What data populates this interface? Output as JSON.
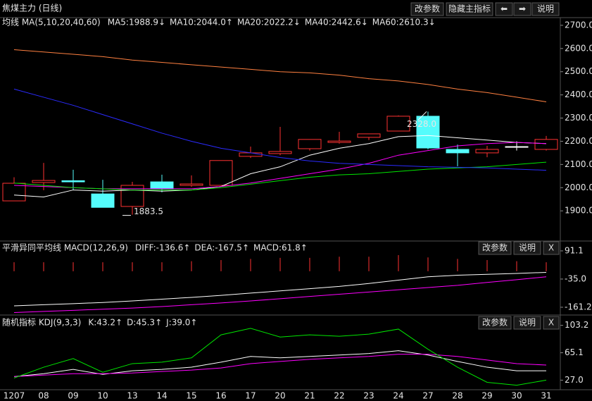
{
  "header": {
    "title": "焦煤主力 (日线)",
    "buttons": [
      "改参数",
      "隐藏主指标",
      "⬅",
      "➡",
      "说明"
    ]
  },
  "chart_data": [
    {
      "type": "candlestick",
      "title": "均线 MA(5,10,20,40,60)",
      "categories": [
        "1207",
        "08",
        "09",
        "10",
        "13",
        "14",
        "15",
        "16",
        "17",
        "20",
        "21",
        "22",
        "23",
        "24",
        "27",
        "28",
        "29",
        "30",
        "31"
      ],
      "open": [
        1943,
        2022,
        2030,
        1973,
        1919,
        2025,
        2010,
        2010,
        2135,
        2147,
        2168,
        2195,
        2217,
        2244,
        2308,
        2165,
        2150,
        2177,
        2165
      ],
      "high": [
        2045,
        2107,
        2077,
        2034,
        2025,
        2056,
        2053,
        2117,
        2177,
        2262,
        2208,
        2241,
        2232,
        2311,
        2328,
        2186,
        2180,
        2200,
        2223
      ],
      "low": [
        1943,
        1989,
        1989,
        1915,
        1883.5,
        1980,
        2004,
        2010,
        2128,
        2140,
        2160,
        2190,
        2205,
        2244,
        2165,
        2092,
        2131,
        2160,
        2160
      ],
      "close": [
        2019,
        2031,
        2025,
        1915,
        2010,
        1995,
        2016,
        2117,
        2150,
        2156,
        2208,
        2201,
        2232,
        2308,
        2171,
        2150,
        2165,
        2177,
        2208
      ],
      "up_color": "#ff3232",
      "down_color": "#54fcfc",
      "flat_color": "#ffffff",
      "series": [
        {
          "name": "MA5:1988.9↓",
          "color": "#ffffff",
          "values": [
            1968,
            1960,
            1990,
            1985,
            1990,
            1985,
            1990,
            2005,
            2060,
            2090,
            2140,
            2170,
            2190,
            2220,
            2225,
            2215,
            2205,
            2195,
            2190
          ]
        },
        {
          "name": "MA10:2044.0↑",
          "color": "#ff00ff",
          "values": [
            2010,
            2005,
            2000,
            1995,
            1995,
            1995,
            1995,
            2005,
            2020,
            2040,
            2060,
            2080,
            2105,
            2140,
            2160,
            2180,
            2190,
            2195,
            2190
          ]
        },
        {
          "name": "MA20:2022.2↓",
          "color": "#00e600",
          "values": [
            2020,
            2010,
            2000,
            1995,
            1990,
            1990,
            1990,
            2000,
            2015,
            2030,
            2045,
            2055,
            2060,
            2070,
            2080,
            2085,
            2090,
            2100,
            2110
          ]
        },
        {
          "name": "MA40:2442.6↓",
          "color": "#2b2bff",
          "values": [
            2425,
            2390,
            2355,
            2315,
            2275,
            2235,
            2200,
            2170,
            2150,
            2130,
            2115,
            2105,
            2100,
            2095,
            2090,
            2088,
            2085,
            2080,
            2075
          ]
        },
        {
          "name": "MA60:2610.3↓",
          "color": "#ff8040",
          "values": [
            2595,
            2585,
            2575,
            2565,
            2550,
            2540,
            2530,
            2520,
            2510,
            2500,
            2495,
            2485,
            2470,
            2460,
            2445,
            2425,
            2410,
            2390,
            2370
          ]
        }
      ],
      "annotations": [
        {
          "label": "2328.0",
          "category": "27",
          "value": 2328
        },
        {
          "label": "1883.5",
          "category": "13",
          "value": 1883.5
        }
      ],
      "ylim": [
        1776,
        2724
      ],
      "yticks": [
        {
          "value": 2700,
          "label": "2700.0"
        },
        {
          "value": 2600,
          "label": "2600.0"
        },
        {
          "value": 2500,
          "label": "2500.0"
        },
        {
          "value": 2400,
          "label": "2400.0"
        },
        {
          "value": 2300,
          "label": "2300.0"
        },
        {
          "value": 2200,
          "label": "2200.0"
        },
        {
          "value": 2100,
          "label": "2100.0"
        },
        {
          "value": 2000,
          "label": "2000.0"
        },
        {
          "value": 1900,
          "label": "1900.0"
        }
      ]
    },
    {
      "type": "macd",
      "title": "平滑异同平均线 MACD(12,26,9)",
      "buttons": [
        "改参数",
        "说明",
        "X"
      ],
      "values": [
        40,
        40,
        40,
        40,
        40,
        40,
        45,
        50,
        55,
        60,
        60,
        65,
        65,
        72,
        62,
        55,
        50,
        45,
        40
      ],
      "color": "#ff3232",
      "series": [
        {
          "name": "DIFF:-136.6↑",
          "color": "#ffffff",
          "values": [
            -155,
            -150,
            -145,
            -140,
            -133,
            -125,
            -117,
            -108,
            -98,
            -88,
            -78,
            -68,
            -55,
            -40,
            -25,
            -18,
            -14,
            -10,
            -5
          ]
        },
        {
          "name": "DEA:-167.5↑",
          "color": "#ff00ff",
          "values": [
            -185,
            -180,
            -175,
            -170,
            -165,
            -158,
            -150,
            -142,
            -133,
            -123,
            -113,
            -103,
            -93,
            -83,
            -73,
            -63,
            -50,
            -38,
            -25
          ]
        }
      ],
      "legend_extra": {
        "name": "MACD:61.8↑",
        "color": "#00e600"
      },
      "ylim": [
        -196,
        132
      ],
      "yticks": [
        91.1,
        {
          "value": -35,
          "label": "-35.0"
        },
        -161.2
      ]
    },
    {
      "type": "line",
      "title": "随机指标 KDJ(9,3,3)",
      "buttons": [
        "改参数",
        "说明",
        "X"
      ],
      "series": [
        {
          "name": "K:43.2↑",
          "color": "#ffffff",
          "values": [
            32,
            36,
            42,
            35,
            40,
            42,
            45,
            52,
            60,
            58,
            60,
            62,
            64,
            68,
            62,
            53,
            45,
            40,
            40
          ]
        },
        {
          "name": "D:45.3↑",
          "color": "#ff00ff",
          "values": [
            32,
            34,
            36,
            36,
            37,
            39,
            41,
            44,
            50,
            53,
            56,
            58,
            60,
            63,
            63,
            60,
            55,
            50,
            48
          ]
        },
        {
          "name": "J:39.0↑",
          "color": "#00e600",
          "values": [
            30,
            45,
            57,
            38,
            50,
            52,
            58,
            90,
            99,
            87,
            90,
            88,
            91,
            98,
            70,
            45,
            24,
            20,
            27
          ]
        }
      ],
      "ylim": [
        13.7,
        115.6
      ],
      "yticks": [
        103.2,
        65.1,
        {
          "value": 27,
          "label": "27.0"
        }
      ]
    }
  ]
}
